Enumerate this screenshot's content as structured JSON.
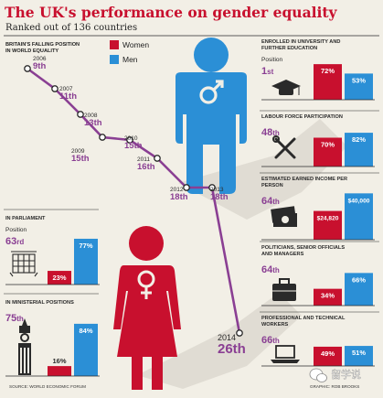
{
  "title": "The UK's performance on gender equality",
  "subtitle": "Ranked out of 136 countries",
  "legend": {
    "women": "Women",
    "men": "Men"
  },
  "colors": {
    "women": "#c8102e",
    "men": "#2b8fd6",
    "purple": "#8a3f93",
    "dark": "#2a2a2a",
    "bg": "#f2efe6"
  },
  "timeline": {
    "heading_line1": "BRITAIN'S FALLING POSITION",
    "heading_line2": "IN WORLD EQUALITY"
  },
  "source": "SOURCE: WORLD ECONOMIC FORUM",
  "credit": "GRAPHIC: ROB BROOKS",
  "watermark": "留学说",
  "icons": {
    "male": "male-figure-icon",
    "female": "female-figure-icon",
    "portcullis": "portcullis-icon",
    "big_ben": "big-ben-icon",
    "graduation_cap": "graduation-cap-icon",
    "tools": "tools-icon",
    "money": "banknotes-icon",
    "briefcase": "briefcase-icon",
    "laptop": "laptop-icon",
    "wechat": "wechat-icon"
  },
  "chart_data": [
    {
      "type": "line",
      "title": "BRITAIN'S FALLING POSITION IN WORLD EQUALITY",
      "x": [
        2006,
        2007,
        2008,
        2009,
        2010,
        2011,
        2012,
        2013,
        2014
      ],
      "rank": [
        "9th",
        "11th",
        "13th",
        "15th",
        "15th",
        "16th",
        "18th",
        "18th",
        "26th"
      ],
      "values": [
        9,
        11,
        13,
        15,
        15,
        16,
        18,
        18,
        26
      ],
      "inverted": true
    },
    {
      "type": "bar",
      "title": "IN PARLIAMENT",
      "position_label": "Position",
      "position": "63",
      "position_suffix": "rd",
      "categories": [
        "Women",
        "Men"
      ],
      "values": [
        23,
        77
      ],
      "unit": "%",
      "ylim": [
        0,
        100
      ]
    },
    {
      "type": "bar",
      "title": "IN MINISTERIAL POSITIONS",
      "position_label": "",
      "position": "75",
      "position_suffix": "th",
      "categories": [
        "Women",
        "Men"
      ],
      "values": [
        16,
        84
      ],
      "unit": "%",
      "ylim": [
        0,
        100
      ]
    },
    {
      "type": "bar",
      "title": "ENROLLED IN UNIVERSITY AND FURTHER EDUCATION",
      "position_label": "Position",
      "position": "1",
      "position_suffix": "st",
      "categories": [
        "Women",
        "Men"
      ],
      "values": [
        72,
        53
      ],
      "unit": "%",
      "ylim": [
        0,
        100
      ]
    },
    {
      "type": "bar",
      "title": "LABOUR FORCE PARTICIPATION",
      "position_label": "",
      "position": "48",
      "position_suffix": "th",
      "categories": [
        "Women",
        "Men"
      ],
      "values": [
        70,
        82
      ],
      "unit": "%",
      "ylim": [
        0,
        100
      ]
    },
    {
      "type": "bar",
      "title": "ESTIMATED EARNED INCOME PER PERSON",
      "position_label": "",
      "position": "64",
      "position_suffix": "th",
      "categories": [
        "Women",
        "Men"
      ],
      "values": [
        24820,
        40000
      ],
      "labels": [
        "$24,820",
        "$40,000"
      ],
      "ylim": [
        0,
        45000
      ]
    },
    {
      "type": "bar",
      "title": "POLITICIANS, SENIOR OFFICIALS AND MANAGERS",
      "position_label": "",
      "position": "64",
      "position_suffix": "th",
      "categories": [
        "Women",
        "Men"
      ],
      "values": [
        34,
        66
      ],
      "unit": "%",
      "ylim": [
        0,
        100
      ]
    },
    {
      "type": "bar",
      "title": "PROFESSIONAL AND TECHNICAL WORKERS",
      "position_label": "",
      "position": "66",
      "position_suffix": "th",
      "categories": [
        "Women",
        "Men"
      ],
      "values": [
        49,
        51
      ],
      "unit": "%",
      "ylim": [
        0,
        100
      ]
    }
  ]
}
